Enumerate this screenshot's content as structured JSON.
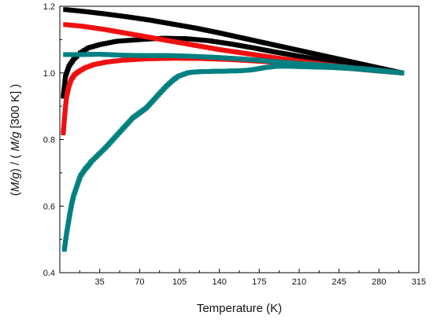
{
  "chart_data": {
    "type": "scatter",
    "title": "",
    "xlabel": "Temperature (K)",
    "ylabel_parts": [
      "(",
      "M/g",
      ") / ( ",
      "M/g",
      " [300 K] )"
    ],
    "xlim": [
      0,
      315
    ],
    "ylim": [
      0.4,
      1.2
    ],
    "xticks": [
      35,
      70,
      105,
      140,
      175,
      210,
      245,
      280,
      315
    ],
    "xtick_labels": [
      "35",
      "70",
      "105",
      "140",
      "175",
      "210",
      "245",
      "280",
      "315"
    ],
    "yticks": [
      0.4,
      0.6,
      0.8,
      1.0,
      1.2
    ],
    "ytick_labels": [
      "0.4",
      "0.6",
      "0.8",
      "1.0",
      "1.2"
    ],
    "grid": false,
    "legend": false,
    "series": [
      {
        "color": "#000000",
        "marker": "square",
        "x": [
          5,
          20,
          40,
          60,
          80,
          100,
          120,
          140,
          160,
          180,
          200,
          220,
          240,
          260,
          280,
          300
        ],
        "y": [
          1.19,
          1.185,
          1.177,
          1.168,
          1.158,
          1.146,
          1.134,
          1.12,
          1.105,
          1.09,
          1.075,
          1.06,
          1.045,
          1.03,
          1.015,
          1.0
        ]
      },
      {
        "color": "#000000",
        "marker": "square",
        "x": [
          3,
          5,
          8,
          12,
          18,
          25,
          35,
          50,
          70,
          90,
          110,
          130,
          150,
          170,
          190,
          210,
          230,
          250,
          270,
          290,
          300
        ],
        "y": [
          0.93,
          0.99,
          1.02,
          1.04,
          1.06,
          1.075,
          1.085,
          1.095,
          1.1,
          1.104,
          1.103,
          1.097,
          1.087,
          1.075,
          1.062,
          1.05,
          1.038,
          1.026,
          1.014,
          1.004,
          1.0
        ]
      },
      {
        "color": "#ee1111",
        "marker": "square",
        "x": [
          5,
          20,
          40,
          60,
          80,
          100,
          120,
          140,
          160,
          180,
          200,
          220,
          240,
          260,
          280,
          300
        ],
        "y": [
          1.145,
          1.14,
          1.13,
          1.118,
          1.106,
          1.094,
          1.082,
          1.07,
          1.06,
          1.05,
          1.04,
          1.031,
          1.022,
          1.014,
          1.007,
          1.0
        ]
      },
      {
        "color": "#ee1111",
        "marker": "square",
        "x": [
          3,
          4,
          5,
          6,
          8,
          10,
          13,
          17,
          22,
          30,
          40,
          55,
          75,
          100,
          125,
          150,
          175,
          200,
          225,
          250,
          275,
          300
        ],
        "y": [
          0.82,
          0.86,
          0.9,
          0.93,
          0.96,
          0.98,
          0.995,
          1.005,
          1.015,
          1.025,
          1.032,
          1.038,
          1.042,
          1.044,
          1.043,
          1.04,
          1.035,
          1.029,
          1.022,
          1.015,
          1.007,
          1.0
        ]
      },
      {
        "color": "#008080",
        "marker": "square",
        "x": [
          5,
          20,
          35,
          55,
          75,
          95,
          115,
          135,
          155,
          175,
          195,
          215,
          235,
          255,
          275,
          295,
          300
        ],
        "y": [
          1.055,
          1.055,
          1.056,
          1.053,
          1.052,
          1.052,
          1.05,
          1.047,
          1.043,
          1.038,
          1.032,
          1.027,
          1.022,
          1.016,
          1.01,
          1.002,
          1.0
        ]
      },
      {
        "color": "#008080",
        "marker": "square",
        "x": [
          4,
          6,
          8,
          10,
          12,
          14,
          16,
          18,
          20,
          22,
          25,
          28,
          31,
          34,
          37,
          40,
          44,
          48,
          52,
          56,
          60,
          64,
          68,
          72,
          76,
          80,
          84,
          88,
          92,
          96,
          100,
          104,
          108,
          112,
          116,
          120,
          125,
          130,
          135,
          140,
          145,
          150,
          155,
          160,
          165,
          170,
          175,
          180,
          185,
          190,
          200,
          210,
          220,
          230,
          240,
          250,
          260,
          270,
          280,
          290,
          300
        ],
        "y": [
          0.47,
          0.52,
          0.56,
          0.6,
          0.63,
          0.65,
          0.67,
          0.69,
          0.7,
          0.71,
          0.722,
          0.735,
          0.745,
          0.755,
          0.765,
          0.775,
          0.79,
          0.805,
          0.82,
          0.835,
          0.85,
          0.865,
          0.875,
          0.885,
          0.895,
          0.91,
          0.925,
          0.94,
          0.955,
          0.968,
          0.98,
          0.99,
          0.995,
          1.0,
          1.002,
          1.003,
          1.004,
          1.004,
          1.005,
          1.005,
          1.005,
          1.006,
          1.006,
          1.007,
          1.008,
          1.01,
          1.013,
          1.016,
          1.018,
          1.02,
          1.02,
          1.019,
          1.018,
          1.017,
          1.016,
          1.014,
          1.012,
          1.009,
          1.006,
          1.003,
          1.0
        ]
      }
    ]
  }
}
